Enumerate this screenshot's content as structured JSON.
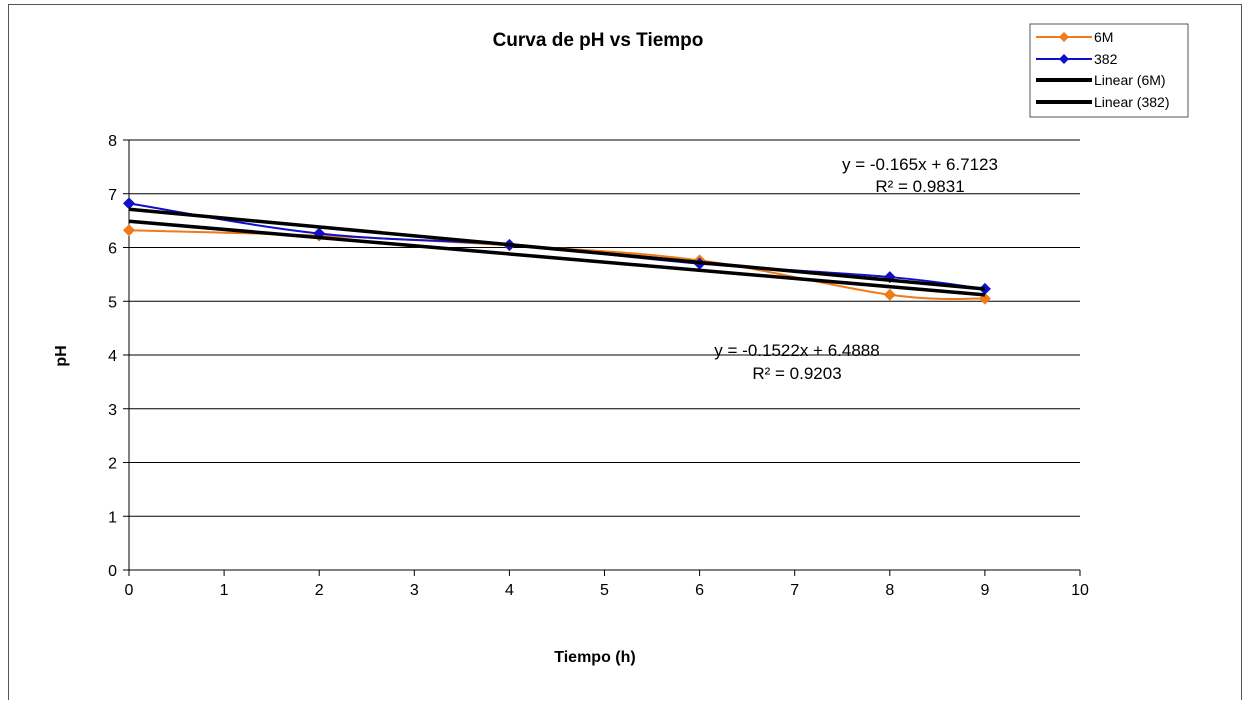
{
  "chart_data": {
    "type": "line",
    "title": "Curva de pH  vs  Tiempo",
    "xlabel": "Tiempo (h)",
    "ylabel": "pH",
    "xlim": [
      0,
      10
    ],
    "ylim": [
      0,
      8
    ],
    "x_ticks": [
      "0",
      "1",
      "2",
      "3",
      "4",
      "5",
      "6",
      "7",
      "8",
      "9",
      "10"
    ],
    "y_ticks": [
      "0",
      "1",
      "2",
      "3",
      "4",
      "5",
      "6",
      "7",
      "8"
    ],
    "grid": "horizontal",
    "legend_position": "top-right",
    "series": [
      {
        "name": "6M",
        "color": "#f07a1a",
        "marker": "diamond",
        "points": [
          [
            0,
            6.32
          ],
          [
            2,
            6.22
          ],
          [
            4,
            6.04
          ],
          [
            6,
            5.76
          ],
          [
            8,
            5.12
          ],
          [
            9,
            5.05
          ]
        ]
      },
      {
        "name": "382",
        "color": "#1010c8",
        "marker": "diamond",
        "points": [
          [
            0,
            6.82
          ],
          [
            2,
            6.26
          ],
          [
            4,
            6.05
          ],
          [
            6,
            5.7
          ],
          [
            8,
            5.45
          ],
          [
            9,
            5.23
          ]
        ]
      }
    ],
    "trendlines": [
      {
        "name": "Linear (6M)",
        "color": "#000000",
        "slope": -0.1522,
        "intercept": 6.4888
      },
      {
        "name": "Linear (382)",
        "color": "#000000",
        "slope": -0.165,
        "intercept": 6.7123
      }
    ],
    "annotations": [
      {
        "equation": "y = -0.165x + 6.7123",
        "r2": "R² = 0.9831"
      },
      {
        "equation": "y = -0.1522x + 6.4888",
        "r2": "R² = 0.9203"
      }
    ]
  }
}
